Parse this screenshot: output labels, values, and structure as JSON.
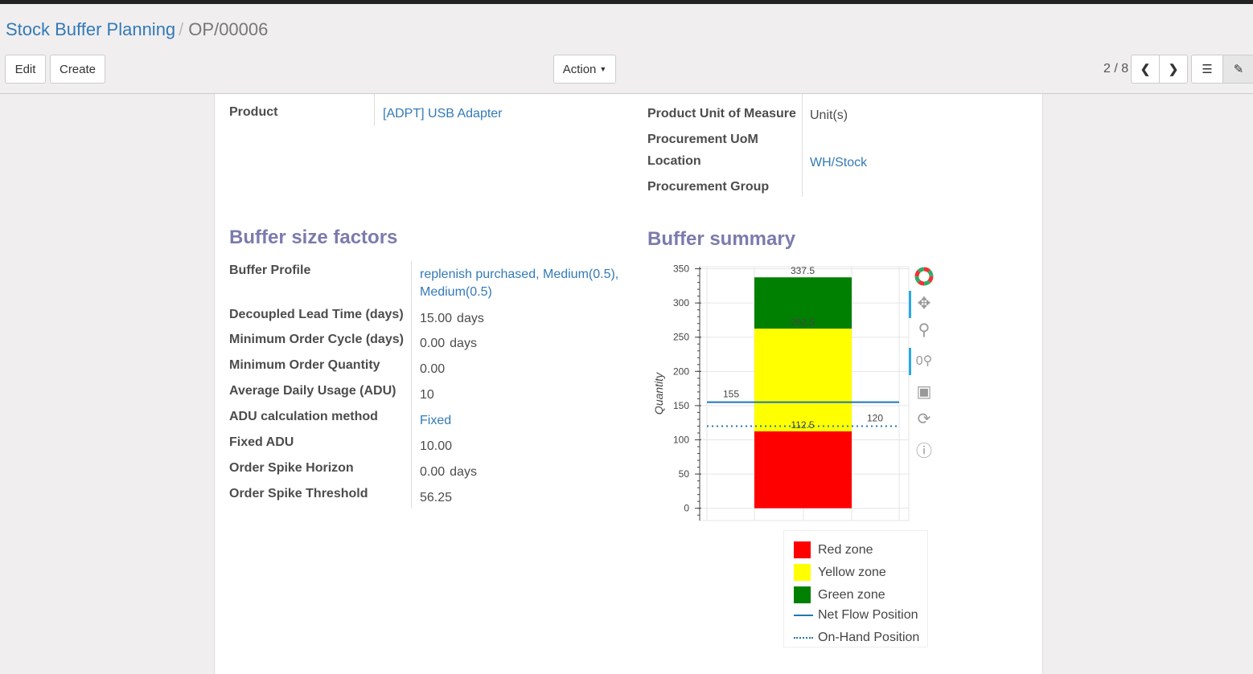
{
  "breadcrumb": {
    "parent": "Stock Buffer Planning",
    "current": "OP/00006"
  },
  "toolbar": {
    "edit": "Edit",
    "create": "Create",
    "action": "Action",
    "pager": "2 / 8"
  },
  "fields_top": {
    "product_label": "Product",
    "product_value": "[ADPT] USB Adapter",
    "uom_label": "Product Unit of Measure",
    "uom_value": "Unit(s)",
    "proc_uom_label": "Procurement UoM",
    "location_label": "Location",
    "location_value": "WH/Stock",
    "proc_group_label": "Procurement Group"
  },
  "buffer_factors": {
    "title": "Buffer size factors",
    "rows": [
      {
        "label": "Buffer Profile",
        "value": "replenish purchased, Medium(0.5),",
        "value2": "Medium(0.5)"
      },
      {
        "label": "Decoupled Lead Time (days)",
        "value": "15.00",
        "unit": "days"
      },
      {
        "label": "Minimum Order Cycle (days)",
        "value": "0.00",
        "unit": "days"
      },
      {
        "label": "Minimum Order Quantity",
        "value": "0.00"
      },
      {
        "label": "Average Daily Usage (ADU)",
        "value": "10"
      },
      {
        "label": "ADU calculation method",
        "value": "Fixed"
      },
      {
        "label": "Fixed ADU",
        "value": "10.00"
      },
      {
        "label": "Order Spike Horizon",
        "value": "0.00",
        "unit": "days"
      },
      {
        "label": "Order Spike Threshold",
        "value": "56.25"
      }
    ]
  },
  "buffer_summary": {
    "title": "Buffer summary"
  },
  "chart_data": {
    "type": "bar",
    "ylabel": "Quantity",
    "ylim": [
      -18,
      353
    ],
    "yticks": [
      0,
      50,
      100,
      150,
      200,
      250,
      300,
      350
    ],
    "grid": true,
    "legend_placement": "bottom",
    "stacked": [
      {
        "name": "Red zone",
        "bottom": 0,
        "top": 112.5,
        "label": "112.5",
        "color": "#ff0000"
      },
      {
        "name": "Yellow zone",
        "bottom": 112.5,
        "top": 262.5,
        "label": "262.5",
        "color": "#ffff00"
      },
      {
        "name": "Green zone",
        "bottom": 262.5,
        "top": 337.5,
        "label": "337.5",
        "color": "#008000"
      }
    ],
    "lines": [
      {
        "name": "Net Flow Position",
        "value": 155,
        "label": "155",
        "style": "solid",
        "color": "#1f77b4"
      },
      {
        "name": "On-Hand Position",
        "value": 120,
        "label": "120",
        "style": "dotted",
        "color": "#1f77b4"
      }
    ]
  }
}
